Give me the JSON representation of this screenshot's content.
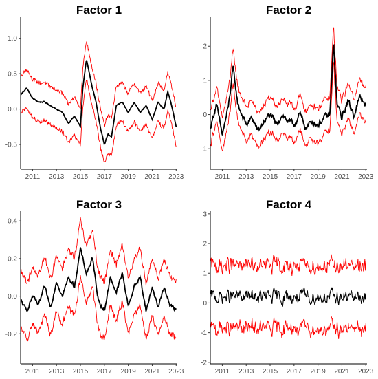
{
  "figure": {
    "background": "#ffffff"
  },
  "chart_data": [
    {
      "type": "line",
      "title": "Factor 1",
      "xlabel": "",
      "ylabel": "",
      "x_range": [
        2010.0,
        2023.1
      ],
      "ylim": [
        -0.85,
        1.25
      ],
      "yticks": [
        -0.5,
        0.0,
        0.5,
        1.0
      ],
      "ytick_labels": [
        "-0.5",
        "0.0",
        "0.5",
        "1.0"
      ],
      "xticks": [
        2011,
        2013,
        2015,
        2017,
        2019,
        2021,
        2023
      ],
      "xtick_labels": [
        "2011",
        "2013",
        "2015",
        "2017",
        "2019",
        "2021",
        "2023"
      ],
      "band_width": 0.27,
      "noise": 0.015,
      "colors": {
        "estimate": "#000000",
        "bands": "#ff0000"
      },
      "series": [
        {
          "role": "estimate",
          "x": [
            2010.0,
            2010.5,
            2011.0,
            2011.5,
            2012.0,
            2012.5,
            2013.0,
            2013.5,
            2014.0,
            2014.5,
            2015.0,
            2015.2,
            2015.5,
            2016.0,
            2016.3,
            2016.7,
            2017.0,
            2017.3,
            2017.6,
            2018.0,
            2018.5,
            2019.0,
            2019.5,
            2020.0,
            2020.5,
            2021.0,
            2021.5,
            2022.0,
            2022.3,
            2022.7,
            2023.0
          ],
          "y": [
            0.2,
            0.3,
            0.15,
            0.1,
            0.1,
            0.05,
            0.0,
            -0.05,
            -0.2,
            -0.1,
            -0.25,
            0.3,
            0.7,
            0.3,
            0.1,
            -0.3,
            -0.5,
            -0.35,
            -0.4,
            0.05,
            0.1,
            -0.05,
            0.1,
            -0.05,
            0.05,
            -0.15,
            0.1,
            0.0,
            0.25,
            0.0,
            -0.25
          ]
        }
      ]
    },
    {
      "type": "line",
      "title": "Factor 2",
      "xlabel": "",
      "ylabel": "",
      "x_range": [
        2010.0,
        2023.1
      ],
      "ylim": [
        -1.6,
        2.75
      ],
      "yticks": [
        -1,
        0,
        1,
        2
      ],
      "ytick_labels": [
        "-1",
        "0",
        "1",
        "2"
      ],
      "xticks": [
        2011,
        2013,
        2015,
        2017,
        2019,
        2021,
        2023
      ],
      "xtick_labels": [
        "2011",
        "2013",
        "2015",
        "2017",
        "2019",
        "2021",
        "2023"
      ],
      "band_width": 0.5,
      "noise": 0.18,
      "colors": {
        "estimate": "#000000",
        "bands": "#ff0000"
      },
      "series": [
        {
          "role": "estimate",
          "x": [
            2010.0,
            2010.5,
            2011.0,
            2011.5,
            2011.9,
            2012.3,
            2013.0,
            2013.5,
            2014.0,
            2014.5,
            2015.0,
            2015.5,
            2016.0,
            2016.5,
            2017.0,
            2017.5,
            2018.0,
            2018.5,
            2019.0,
            2019.5,
            2020.0,
            2020.3,
            2020.6,
            2021.0,
            2021.5,
            2022.0,
            2022.5,
            2023.0
          ],
          "y": [
            -0.4,
            0.3,
            -0.6,
            0.2,
            1.35,
            0.3,
            -0.3,
            -0.1,
            -0.5,
            -0.2,
            0.0,
            -0.3,
            0.0,
            -0.2,
            -0.3,
            0.0,
            -0.4,
            -0.2,
            -0.3,
            -0.1,
            0.0,
            2.1,
            0.3,
            -0.1,
            0.4,
            0.0,
            0.5,
            0.3
          ]
        }
      ]
    },
    {
      "type": "line",
      "title": "Factor 3",
      "xlabel": "",
      "ylabel": "",
      "x_range": [
        2010.0,
        2023.1
      ],
      "ylim": [
        -0.36,
        0.43
      ],
      "yticks": [
        -0.2,
        0.0,
        0.2,
        0.4
      ],
      "ytick_labels": [
        "-0.2",
        "0.0",
        "0.2",
        "0.4"
      ],
      "xticks": [
        2011,
        2013,
        2015,
        2017,
        2019,
        2021,
        2023
      ],
      "xtick_labels": [
        "2011",
        "2013",
        "2015",
        "2017",
        "2019",
        "2021",
        "2023"
      ],
      "band_width": 0.15,
      "noise": 0.02,
      "colors": {
        "estimate": "#000000",
        "bands": "#ff0000"
      },
      "series": [
        {
          "role": "estimate",
          "x": [
            2010.0,
            2010.5,
            2011.0,
            2011.5,
            2012.0,
            2012.5,
            2013.0,
            2013.5,
            2014.0,
            2014.5,
            2015.0,
            2015.5,
            2016.0,
            2016.5,
            2017.0,
            2017.5,
            2018.0,
            2018.5,
            2019.0,
            2019.5,
            2020.0,
            2020.5,
            2021.0,
            2021.5,
            2022.0,
            2022.5,
            2023.0
          ],
          "y": [
            -0.02,
            -0.08,
            0.0,
            -0.05,
            0.05,
            -0.06,
            0.08,
            0.0,
            0.1,
            0.05,
            0.25,
            0.12,
            0.2,
            -0.02,
            -0.08,
            0.1,
            0.02,
            0.12,
            -0.05,
            0.05,
            0.1,
            -0.08,
            0.05,
            -0.06,
            0.05,
            -0.05,
            -0.07
          ]
        }
      ]
    },
    {
      "type": "line",
      "title": "Factor 4",
      "xlabel": "",
      "ylabel": "",
      "x_range": [
        2010.0,
        2023.1
      ],
      "ylim": [
        -2.05,
        2.95
      ],
      "yticks": [
        -2,
        -1,
        0,
        1,
        2,
        3
      ],
      "ytick_labels": [
        "-2",
        "-1",
        "0",
        "1",
        "2",
        "3"
      ],
      "xticks": [
        2011,
        2013,
        2015,
        2017,
        2019,
        2021,
        2023
      ],
      "xtick_labels": [
        "2011",
        "2013",
        "2015",
        "2017",
        "2019",
        "2021",
        "2023"
      ],
      "band_width": 1.05,
      "noise": 0.45,
      "colors": {
        "estimate": "#000000",
        "bands": "#ff0000"
      },
      "series": [
        {
          "role": "estimate",
          "x": [
            2010.0,
            2023.0
          ],
          "y": [
            0.2,
            0.2
          ]
        }
      ]
    }
  ]
}
